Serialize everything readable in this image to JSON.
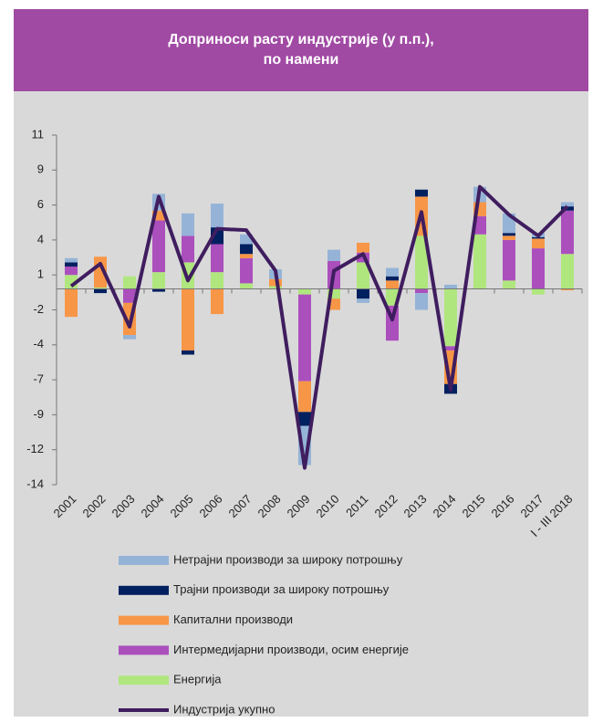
{
  "chart_data": {
    "type": "bar",
    "stacked": true,
    "title": [
      "Доприноси расту индустрије (у п.п.),",
      "по намени"
    ],
    "categories": [
      "2001",
      "2002",
      "2003",
      "2004",
      "2005",
      "2006",
      "2007",
      "2008",
      "2009",
      "2010",
      "2011",
      "2012",
      "2013",
      "2014",
      "2015",
      "2016",
      "2017",
      "I - III 2018"
    ],
    "series": [
      {
        "name": "Нетрајни производи за широку потрошњу",
        "color": "#95b3d7",
        "values": [
          0.3,
          0,
          -0.3,
          1.2,
          1.6,
          1.7,
          0.7,
          0.7,
          -2.8,
          0.8,
          -0.3,
          0.6,
          -1.2,
          0.3,
          1.1,
          1.4,
          0.3,
          0.3
        ]
      },
      {
        "name": "Трајни производи за широку потрошњу",
        "color": "#002060",
        "values": [
          0.3,
          -0.3,
          0,
          -0.2,
          -0.3,
          1.2,
          0.7,
          0,
          -1.0,
          0,
          -0.7,
          0.3,
          0.5,
          -0.7,
          0,
          0.2,
          0.1,
          0.3
        ]
      },
      {
        "name": "Капитални производи",
        "color": "#f79646",
        "values": [
          -2.0,
          2.2,
          -2.3,
          0.7,
          -4.4,
          -1.8,
          0.3,
          0.5,
          -2.2,
          -0.8,
          0.7,
          0.6,
          2.8,
          -2.4,
          1.0,
          0.3,
          0.7,
          -0.1
        ]
      },
      {
        "name": "Интермедијарни производи, осим енергије",
        "color": "#ab4fbd",
        "values": [
          0.6,
          0,
          -1.0,
          3.7,
          1.9,
          2.0,
          1.8,
          0,
          -6.2,
          2.0,
          0.7,
          -2.5,
          -0.3,
          -0.3,
          1.3,
          2.9,
          2.9,
          3.1
        ]
      },
      {
        "name": "Енергија",
        "color": "#b0e67e",
        "values": [
          1.0,
          0.1,
          0.9,
          1.2,
          1.9,
          1.2,
          0.4,
          0.2,
          -0.4,
          -0.7,
          1.9,
          -1.2,
          3.8,
          -4.1,
          3.9,
          0.6,
          -0.4,
          2.5
        ]
      },
      {
        "name": "Индустрија укупно",
        "color": "#3f1d5f",
        "type": "line",
        "values": [
          0.2,
          1.8,
          -2.7,
          6.6,
          0.6,
          4.3,
          4.2,
          1.3,
          -12.8,
          1.3,
          2.5,
          -2.2,
          5.5,
          -7.2,
          7.3,
          5.3,
          3.8,
          5.9
        ]
      }
    ],
    "ylim": [
      -14,
      11
    ],
    "yticks": [
      11,
      {
        "value": 8.5,
        "label": "9"
      },
      6,
      {
        "value": 3.5,
        "label": "4"
      },
      1,
      {
        "value": -1.5,
        "label": "-2"
      },
      -4,
      {
        "value": -6.5,
        "label": "-7"
      },
      -9,
      {
        "value": -11.5,
        "label": "-12"
      },
      -14
    ],
    "grid": false
  }
}
